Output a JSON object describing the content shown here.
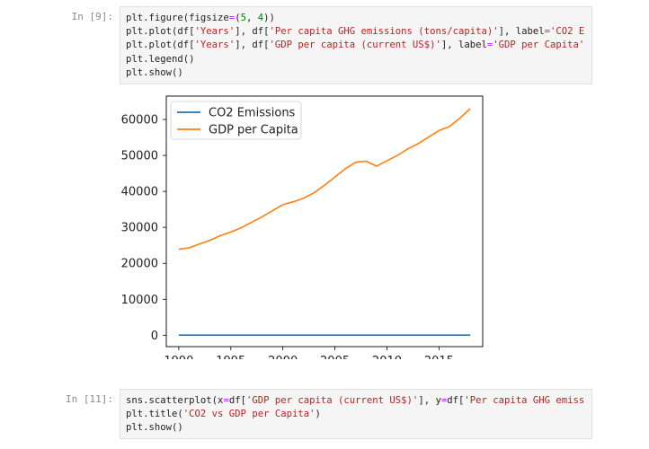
{
  "cells": [
    {
      "prompt": "In [9]:",
      "lines": [
        [
          {
            "t": "plt.figure(figsize",
            "c": "kw"
          },
          {
            "t": "=",
            "c": "op"
          },
          {
            "t": "(",
            "c": "kw"
          },
          {
            "t": "5",
            "c": "num"
          },
          {
            "t": ", ",
            "c": "kw"
          },
          {
            "t": "4",
            "c": "num"
          },
          {
            "t": "))",
            "c": "kw"
          }
        ],
        [
          {
            "t": "plt.plot(df[",
            "c": "kw"
          },
          {
            "t": "'Years'",
            "c": "str"
          },
          {
            "t": "], df[",
            "c": "kw"
          },
          {
            "t": "'Per capita GHG emissions (tons/capita)'",
            "c": "str"
          },
          {
            "t": "], label",
            "c": "kw"
          },
          {
            "t": "=",
            "c": "op"
          },
          {
            "t": "'CO2 E",
            "c": "str"
          }
        ],
        [
          {
            "t": "plt.plot(df[",
            "c": "kw"
          },
          {
            "t": "'Years'",
            "c": "str"
          },
          {
            "t": "], df[",
            "c": "kw"
          },
          {
            "t": "'GDP per capita (current US$)'",
            "c": "str"
          },
          {
            "t": "], label",
            "c": "kw"
          },
          {
            "t": "=",
            "c": "op"
          },
          {
            "t": "'GDP per Capita'",
            "c": "str"
          }
        ],
        [
          {
            "t": "plt.legend()",
            "c": "kw"
          }
        ],
        [
          {
            "t": "plt.show()",
            "c": "kw"
          }
        ]
      ]
    },
    {
      "prompt": "In [11]:",
      "lines": [
        [
          {
            "t": "sns.scatterplot(x",
            "c": "kw"
          },
          {
            "t": "=",
            "c": "op"
          },
          {
            "t": "df[",
            "c": "kw"
          },
          {
            "t": "'GDP per capita (current US$)'",
            "c": "str"
          },
          {
            "t": "], y",
            "c": "kw"
          },
          {
            "t": "=",
            "c": "op"
          },
          {
            "t": "df[",
            "c": "kw"
          },
          {
            "t": "'Per capita GHG emiss",
            "c": "str"
          }
        ],
        [
          {
            "t": "plt.title(",
            "c": "kw"
          },
          {
            "t": "'CO2 vs GDP per Capita'",
            "c": "str"
          },
          {
            "t": ")",
            "c": "kw"
          }
        ],
        [
          {
            "t": "plt.show()",
            "c": "kw"
          }
        ]
      ]
    }
  ],
  "chart_data": {
    "type": "line",
    "title": "",
    "xlabel": "",
    "ylabel": "",
    "xlim": [
      1988.8,
      2019.2
    ],
    "ylim": [
      -3170,
      66500
    ],
    "xticks": [
      1990,
      1995,
      2000,
      2005,
      2010,
      2015
    ],
    "yticks": [
      0,
      10000,
      20000,
      30000,
      40000,
      50000,
      60000
    ],
    "legend_position": "upper-left",
    "series": [
      {
        "name": "CO2 Emissions",
        "color": "#1f77b4",
        "x": [
          1990,
          1991,
          1992,
          1993,
          1994,
          1995,
          1996,
          1997,
          1998,
          1999,
          2000,
          2001,
          2002,
          2003,
          2004,
          2005,
          2006,
          2007,
          2008,
          2009,
          2010,
          2011,
          2012,
          2013,
          2014,
          2015,
          2016,
          2017,
          2018
        ],
        "y": [
          21,
          21,
          21,
          21,
          21,
          21,
          21,
          21,
          21,
          21,
          21,
          21,
          21,
          21,
          21,
          21,
          21,
          21,
          21,
          21,
          21,
          21,
          21,
          21,
          21,
          21,
          21,
          21,
          21
        ]
      },
      {
        "name": "GDP per Capita",
        "color": "#ff7f0e",
        "x": [
          1990,
          1991,
          1992,
          1993,
          1994,
          1995,
          1996,
          1997,
          1998,
          1999,
          2000,
          2001,
          2002,
          2003,
          2004,
          2005,
          2006,
          2007,
          2008,
          2009,
          2010,
          2011,
          2012,
          2013,
          2014,
          2015,
          2016,
          2017,
          2018
        ],
        "y": [
          23900,
          24300,
          25400,
          26400,
          27700,
          28700,
          29900,
          31400,
          32900,
          34600,
          36300,
          37100,
          38100,
          39600,
          41700,
          44000,
          46300,
          48100,
          48400,
          47000,
          48500,
          50000,
          51800,
          53300,
          55100,
          56900,
          58000,
          60300,
          63000
        ]
      }
    ]
  }
}
